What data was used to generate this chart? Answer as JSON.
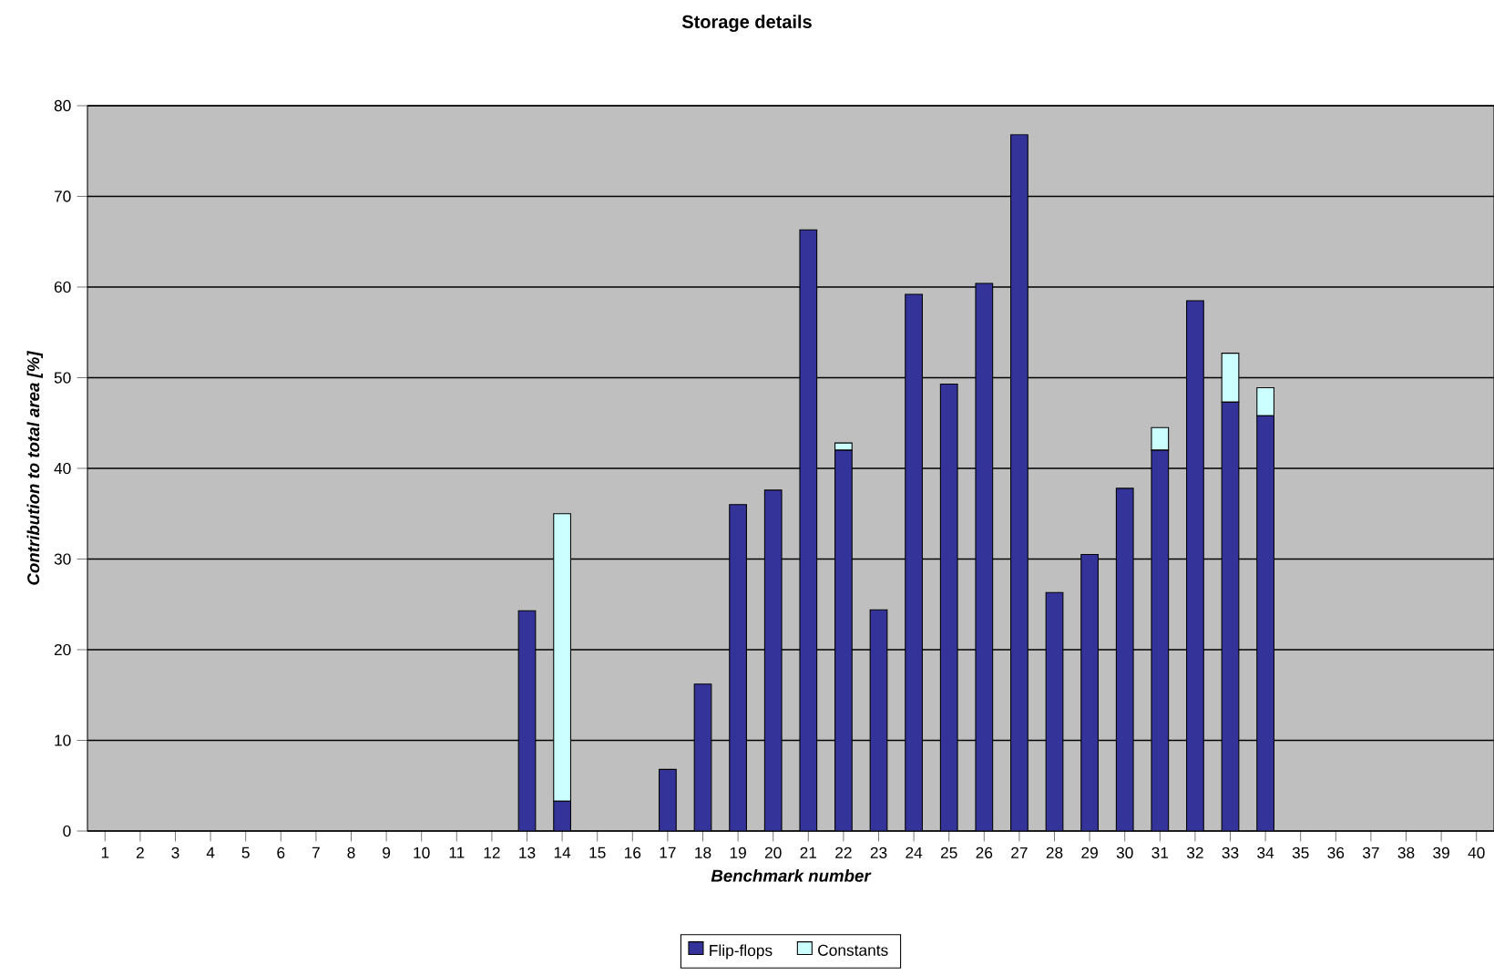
{
  "chart_data": {
    "type": "bar",
    "stacked": true,
    "title": "Storage details",
    "xlabel": "Benchmark number",
    "ylabel": "Contribution to total area [%]",
    "categories": [
      "1",
      "2",
      "3",
      "4",
      "5",
      "6",
      "7",
      "8",
      "9",
      "10",
      "11",
      "12",
      "13",
      "14",
      "15",
      "16",
      "17",
      "18",
      "19",
      "20",
      "21",
      "22",
      "23",
      "24",
      "25",
      "26",
      "27",
      "28",
      "29",
      "30",
      "31",
      "32",
      "33",
      "34",
      "35",
      "36",
      "37",
      "38",
      "39",
      "40"
    ],
    "series": [
      {
        "name": "Flip-flops",
        "color": "#333399",
        "values": [
          0,
          0,
          0,
          0,
          0,
          0,
          0,
          0,
          0,
          0,
          0,
          0,
          24.3,
          3.3,
          0,
          0,
          6.8,
          16.2,
          36,
          37.6,
          66.3,
          42,
          24.4,
          59.2,
          49.3,
          60.4,
          76.8,
          26.3,
          30.5,
          37.8,
          42,
          58.5,
          47.3,
          45.8,
          0,
          0,
          0,
          0,
          0,
          0
        ]
      },
      {
        "name": "Constants",
        "color": "#ccffff",
        "values": [
          0,
          0,
          0,
          0,
          0,
          0,
          0,
          0,
          0,
          0,
          0,
          0,
          0,
          31.7,
          0,
          0,
          0,
          0,
          0,
          0,
          0,
          0.8,
          0,
          0,
          0,
          0,
          0,
          0,
          0,
          0,
          2.5,
          0,
          5.4,
          3.1,
          0,
          0,
          0,
          0,
          0,
          0
        ]
      }
    ],
    "ylim": [
      0,
      80
    ],
    "yticks": [
      0,
      10,
      20,
      30,
      40,
      50,
      60,
      70,
      80
    ],
    "grid": "y",
    "legend": "bottom"
  }
}
